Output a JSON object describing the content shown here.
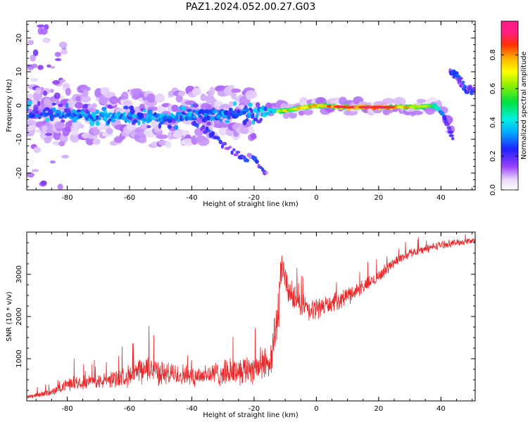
{
  "title": "PAZ1.2024.052.00.27.G03",
  "chart_data": [
    {
      "type": "heatmap",
      "title": "PAZ1.2024.052.00.27.G03",
      "xlabel": "Height of straight line (km)",
      "ylabel": "Frequency (Hz)",
      "xlim": [
        -93,
        51
      ],
      "ylim": [
        -25,
        25
      ],
      "xticks": [
        -80,
        -60,
        -40,
        -20,
        0,
        20,
        40
      ],
      "yticks": [
        -20,
        -10,
        0,
        10,
        20
      ],
      "colorbar": {
        "label": "Normalized spectral amplitude",
        "range": [
          0.0,
          1.0
        ],
        "ticks": [
          0.0,
          0.2,
          0.4,
          0.6,
          0.8
        ],
        "colormap": "gist_ncar-like (white, purple, blue, cyan, green, yellow, orange, red, magenta)"
      },
      "ridge": {
        "description": "Dominant spectral ridge (frequency in Hz vs height in km)",
        "x": [
          -92,
          -80,
          -70,
          -60,
          -50,
          -40,
          -30,
          -20,
          -10,
          0,
          10,
          20,
          30,
          38,
          41,
          44
        ],
        "y": [
          -2,
          -2.5,
          -3,
          -3.5,
          -4,
          -3,
          -2.5,
          -2,
          -1.5,
          0,
          -0.5,
          -0.5,
          -0.5,
          0,
          -3,
          -10
        ],
        "peak_amplitude": [
          0.3,
          0.35,
          0.4,
          0.4,
          0.4,
          0.35,
          0.35,
          0.4,
          0.6,
          0.7,
          0.8,
          0.9,
          0.7,
          0.5,
          0.3,
          0.2
        ]
      },
      "secondary_features": [
        {
          "name": "low-altitude branch",
          "x": [
            -40,
            -36,
            -32,
            -28,
            -24,
            -20,
            -16
          ],
          "y": [
            -4,
            -7,
            -10,
            -13,
            -15,
            -16,
            -20
          ]
        },
        {
          "name": "high-altitude tail",
          "x": [
            43,
            45,
            48,
            51
          ],
          "y": [
            10,
            9,
            5,
            4
          ]
        }
      ]
    },
    {
      "type": "line",
      "xlabel": "Height of straight line (km)",
      "ylabel": "SNR (10 * v/v)",
      "xlim": [
        -93,
        51
      ],
      "ylim": [
        0,
        4000
      ],
      "xticks": [
        -80,
        -60,
        -40,
        -20,
        0,
        20,
        40
      ],
      "yticks": [
        1000,
        2000,
        3000
      ],
      "color": "#e8282a",
      "series": [
        {
          "name": "",
          "x": [
            -93,
            -85,
            -78,
            -70,
            -60,
            -53,
            -50,
            -40,
            -30,
            -20,
            -15,
            -12,
            -11,
            -10,
            -8,
            -5,
            -2,
            0,
            5,
            10,
            15,
            20,
            25,
            30,
            35,
            40,
            45,
            51
          ],
          "y": [
            100,
            200,
            450,
            450,
            600,
            800,
            650,
            600,
            650,
            800,
            900,
            2200,
            3300,
            2800,
            2500,
            2300,
            2100,
            2200,
            2300,
            2500,
            2700,
            2950,
            3300,
            3500,
            3600,
            3700,
            3750,
            3800
          ],
          "noise_amplitude": [
            60,
            100,
            200,
            200,
            300,
            400,
            350,
            300,
            350,
            450,
            500,
            700,
            500,
            450,
            400,
            350,
            350,
            300,
            250,
            250,
            200,
            180,
            150,
            130,
            120,
            110,
            100,
            100
          ]
        }
      ]
    }
  ]
}
